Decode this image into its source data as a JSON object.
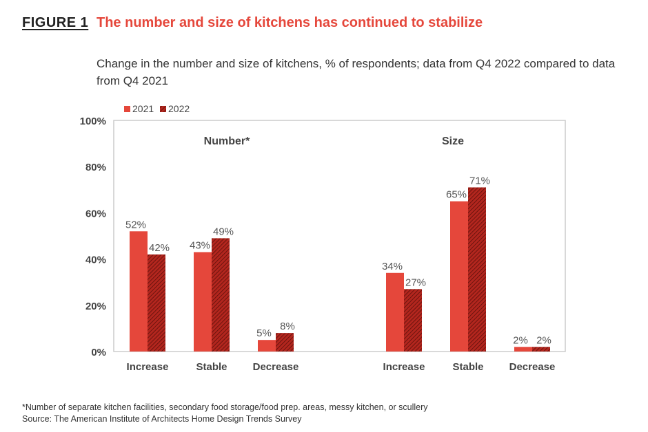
{
  "figure": {
    "label": "FIGURE 1",
    "title": "The number and size of kitchens has continued to stabilize",
    "subtitle": "Change in the number and size of kitchens, % of respondents; data from Q4 2022 compared to data from Q4 2021",
    "footnote": "*Number of separate kitchen facilities, secondary food storage/food prep. areas, messy kitchen, or scullery",
    "source": "Source: The American Institute of Architects Home Design Trends Survey"
  },
  "chart_data": {
    "type": "bar",
    "title": "The number and size of kitchens has continued to stabilize",
    "groups": [
      {
        "label": "Number*",
        "categories": [
          "Increase",
          "Stable",
          "Decrease"
        ],
        "series": [
          {
            "name": "2021",
            "values": [
              52,
              43,
              5
            ],
            "labels": [
              "52%",
              "43%",
              "5%"
            ]
          },
          {
            "name": "2022",
            "values": [
              42,
              49,
              8
            ],
            "labels": [
              "42%",
              "49%",
              "8%"
            ]
          }
        ]
      },
      {
        "label": "Size",
        "categories": [
          "Increase",
          "Stable",
          "Decrease"
        ],
        "series": [
          {
            "name": "2021",
            "values": [
              34,
              65,
              2
            ],
            "labels": [
              "34%",
              "65%",
              "2%"
            ]
          },
          {
            "name": "2022",
            "values": [
              27,
              71,
              2
            ],
            "labels": [
              "27%",
              "71%",
              "2%"
            ]
          }
        ]
      }
    ],
    "legend": [
      "2021",
      "2022"
    ],
    "legend_position": "top-left",
    "y_ticks": [
      "0%",
      "20%",
      "40%",
      "60%",
      "80%",
      "100%"
    ],
    "ylim": [
      0,
      100
    ],
    "grid": false,
    "colors": {
      "2021": "#e5473b",
      "2022": "#b3261e",
      "hatch": "#5a0f0a",
      "axis": "#cccccc"
    }
  }
}
